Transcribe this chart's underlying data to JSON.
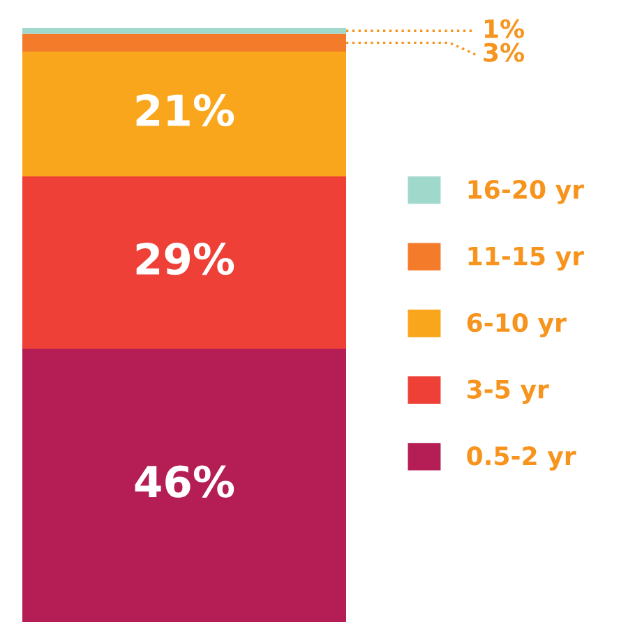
{
  "chart_data": {
    "type": "bar",
    "stacked": true,
    "categories": [
      null
    ],
    "series": [
      {
        "name": "0.5-2 yr",
        "color": "#b41e54",
        "values": [
          46
        ],
        "value_labels": [
          "46%"
        ]
      },
      {
        "name": "3-5 yr",
        "color": "#ee4036",
        "values": [
          29
        ],
        "value_labels": [
          "29%"
        ]
      },
      {
        "name": "6-10 yr",
        "color": "#f9a61c",
        "values": [
          21
        ],
        "value_labels": [
          "21%"
        ]
      },
      {
        "name": "11-15 yr",
        "color": "#f47b2a",
        "values": [
          3
        ],
        "value_labels": [
          "3%"
        ]
      },
      {
        "name": "16-20 yr",
        "color": "#a0d8cc",
        "values": [
          1
        ],
        "value_labels": [
          "1%"
        ]
      }
    ],
    "legend": "right"
  }
}
